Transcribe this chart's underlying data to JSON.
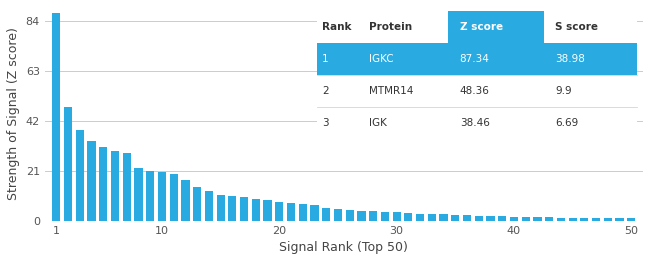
{
  "bar_color": "#29ABE2",
  "bar_values": [
    87.34,
    48.0,
    38.0,
    33.5,
    31.0,
    29.5,
    28.5,
    22.0,
    21.0,
    20.5,
    19.5,
    17.0,
    14.0,
    12.5,
    11.0,
    10.5,
    10.0,
    9.0,
    8.5,
    8.0,
    7.5,
    7.0,
    6.5,
    5.5,
    5.0,
    4.5,
    4.2,
    4.0,
    3.8,
    3.5,
    3.2,
    3.0,
    2.8,
    2.6,
    2.4,
    2.2,
    2.0,
    1.9,
    1.8,
    1.7,
    1.6,
    1.5,
    1.4,
    1.3,
    1.2,
    1.2,
    1.1,
    1.1,
    1.0,
    1.0
  ],
  "xlabel": "Signal Rank (Top 50)",
  "ylabel": "Strength of Signal (Z score)",
  "yticks": [
    0,
    21,
    42,
    63,
    84
  ],
  "xticks": [
    1,
    10,
    20,
    30,
    40,
    50
  ],
  "ylim": [
    0,
    90
  ],
  "xlim": [
    0,
    51
  ],
  "background_color": "#ffffff",
  "table_header_bg": "#29ABE2",
  "table_header_color": "#ffffff",
  "table_row1_bg": "#29ABE2",
  "table_row1_color": "#ffffff",
  "table_other_bg": "#ffffff",
  "table_other_color": "#333333",
  "table_columns": [
    "Rank",
    "Protein",
    "Z score",
    "S score"
  ],
  "table_data": [
    [
      "1",
      "IGKC",
      "87.34",
      "38.98"
    ],
    [
      "2",
      "MTMR14",
      "48.36",
      "9.9"
    ],
    [
      "3",
      "IGK",
      "38.46",
      "6.69"
    ]
  ],
  "grid_color": "#cccccc",
  "axis_color": "#aaaaaa"
}
